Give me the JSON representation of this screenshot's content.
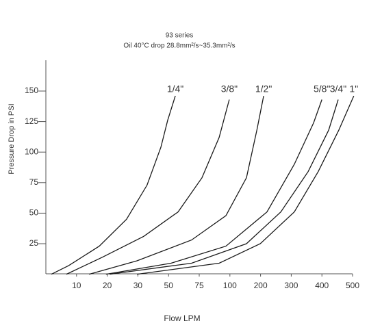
{
  "chart_data": {
    "type": "line",
    "title": "93 series",
    "subtitle": "Oil  40°C drop 28.8mm²/s~35.3mm²/s",
    "x_label": "Flow LPM",
    "y_label": "Pressure Drop in PSI",
    "xlim": [
      0,
      10.1
    ],
    "ylim": [
      0,
      175
    ],
    "xticks": [
      {
        "value": 1,
        "label": "10"
      },
      {
        "value": 2,
        "label": "20"
      },
      {
        "value": 3,
        "label": "30"
      },
      {
        "value": 4,
        "label": "50"
      },
      {
        "value": 5,
        "label": "75"
      },
      {
        "value": 6,
        "label": "100"
      },
      {
        "value": 7,
        "label": "200"
      },
      {
        "value": 8,
        "label": "300"
      },
      {
        "value": 9,
        "label": "400"
      },
      {
        "value": 10,
        "label": "500"
      }
    ],
    "yticks": [
      25,
      50,
      75,
      100,
      125,
      150
    ],
    "grid": false,
    "series": [
      {
        "name": "1/4\"",
        "color": "#1a1a1a",
        "x": [
          0.18,
          0.74,
          1.74,
          2.63,
          3.3,
          3.75,
          3.97,
          4.22
        ],
        "values": [
          0,
          7,
          23,
          45,
          73,
          104,
          126,
          146
        ]
      },
      {
        "name": "3/8\"",
        "color": "#1a1a1a",
        "x": [
          0.67,
          1.85,
          3.19,
          4.31,
          5.09,
          5.65,
          5.98
        ],
        "values": [
          0,
          14,
          31,
          51,
          79,
          112,
          143
        ]
      },
      {
        "name": "1/2\"",
        "color": "#1a1a1a",
        "x": [
          1.41,
          2.97,
          4.75,
          5.87,
          6.54,
          6.88,
          7.1
        ],
        "values": [
          0,
          11,
          28,
          48,
          79,
          118,
          146
        ]
      },
      {
        "name": "5/8\"",
        "color": "#1a1a1a",
        "x": [
          1.96,
          4.08,
          5.87,
          7.21,
          8.1,
          8.73,
          9.0
        ],
        "values": [
          0,
          9,
          23,
          51,
          90,
          124,
          143
        ]
      },
      {
        "name": "3/4\"",
        "color": "#1a1a1a",
        "x": [
          2.08,
          4.75,
          6.54,
          7.66,
          8.55,
          9.22,
          9.53
        ],
        "values": [
          0,
          9,
          25,
          51,
          84,
          118,
          143
        ]
      },
      {
        "name": "1\"",
        "color": "#1a1a1a",
        "x": [
          2.97,
          5.65,
          6.99,
          8.1,
          8.88,
          9.55,
          10.04
        ],
        "values": [
          0,
          9,
          25,
          51,
          84,
          118,
          146
        ]
      }
    ]
  }
}
